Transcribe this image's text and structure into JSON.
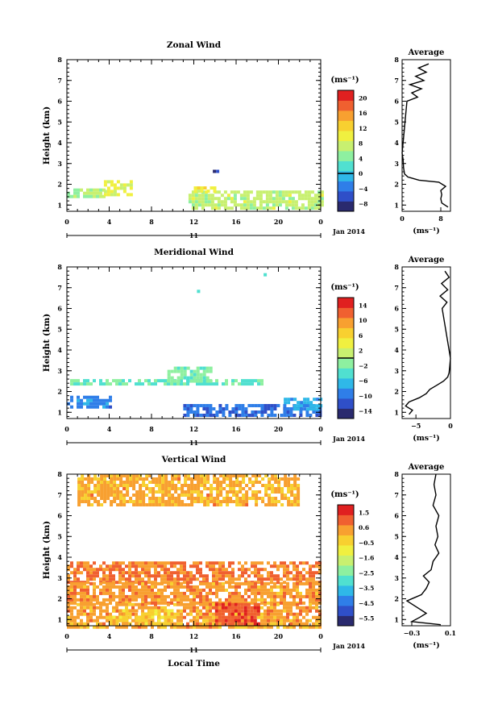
{
  "chart_data": [
    {
      "type": "heatmap",
      "title": "Zonal Wind",
      "ylabel": "Height (km)",
      "x_ticks": [
        "0",
        "4",
        "8",
        "12",
        "16",
        "20",
        "0"
      ],
      "y_ticks": [
        "1",
        "2",
        "3",
        "4",
        "5",
        "6",
        "7",
        "8"
      ],
      "date_day": "11",
      "date_label": "Jan 2014",
      "colorbar": {
        "unit": "(ms⁻¹)",
        "ticks": [
          "20",
          "16",
          "12",
          "8",
          "4",
          "0",
          "−4",
          "−8"
        ],
        "range": [
          -10,
          22
        ],
        "colors": [
          "#2a2a6e",
          "#2f4fc8",
          "#2f7ee8",
          "#2fb8e8",
          "#50e0d0",
          "#8ef0a0",
          "#c8f070",
          "#f0f040",
          "#f8d030",
          "#f8a030",
          "#f06030",
          "#e02020"
        ],
        "marker": 0
      },
      "time_range": [
        0,
        24
      ],
      "height_range": [
        0.7,
        8
      ],
      "patches": [
        {
          "t": [
            0,
            3.5
          ],
          "h": [
            1.4,
            1.8
          ],
          "v": 6
        },
        {
          "t": [
            3.5,
            6.2
          ],
          "h": [
            1.5,
            2.2
          ],
          "v": 9
        },
        {
          "t": [
            11.5,
            24
          ],
          "h": [
            0.9,
            1.7
          ],
          "v": 7
        },
        {
          "t": [
            12,
            14
          ],
          "h": [
            1.6,
            1.9
          ],
          "v": 10
        },
        {
          "t": [
            13.8,
            14.2
          ],
          "h": [
            2.4,
            2.7
          ],
          "v": -7
        }
      ],
      "profile": {
        "title": "Average",
        "xlabel": "(ms⁻¹)",
        "x_ticks": [
          "0",
          "8"
        ],
        "xlim": [
          0,
          10
        ],
        "heights": [
          0.9,
          1.1,
          1.3,
          1.5,
          1.7,
          1.9,
          2.1,
          2.2,
          2.35,
          2.5,
          2.8,
          3.2,
          3.5,
          6.0,
          6.2,
          6.4,
          6.6,
          6.8,
          7.0,
          7.2,
          7.4,
          7.6,
          7.8
        ],
        "values": [
          9.5,
          8.2,
          8.0,
          8.2,
          8.0,
          9.0,
          7.6,
          3.5,
          1.2,
          0.5,
          0.3,
          0.2,
          0.0,
          1.0,
          3.2,
          2.0,
          4.0,
          1.6,
          4.5,
          2.8,
          5.0,
          3.4,
          5.5
        ]
      }
    },
    {
      "type": "heatmap",
      "title": "Meridional Wind",
      "ylabel": "Height (km)",
      "x_ticks": [
        "0",
        "4",
        "8",
        "12",
        "16",
        "20",
        "0"
      ],
      "y_ticks": [
        "1",
        "2",
        "3",
        "4",
        "5",
        "6",
        "7",
        "8"
      ],
      "date_day": "11",
      "date_label": "Jan 2014",
      "colorbar": {
        "unit": "(ms⁻¹)",
        "ticks": [
          "14",
          "10",
          "6",
          "2",
          "−2",
          "−6",
          "−10",
          "−14"
        ],
        "range": [
          -16,
          16
        ],
        "colors": [
          "#2a2a6e",
          "#2f4fc8",
          "#2f7ee8",
          "#2fb8e8",
          "#50e0d0",
          "#8ef0a0",
          "#c8f070",
          "#f0f040",
          "#f8d030",
          "#f8a030",
          "#f06030",
          "#e02020"
        ],
        "marker": 0
      },
      "time_range": [
        0,
        24
      ],
      "height_range": [
        0.7,
        8
      ],
      "patches": [
        {
          "t": [
            0,
            4
          ],
          "h": [
            1.3,
            1.8
          ],
          "v": -9
        },
        {
          "t": [
            11,
            24
          ],
          "h": [
            0.9,
            1.4
          ],
          "v": -10
        },
        {
          "t": [
            20.5,
            24
          ],
          "h": [
            1.2,
            1.7
          ],
          "v": -7
        },
        {
          "t": [
            0,
            18.5
          ],
          "h": [
            2.4,
            2.6
          ],
          "v": -3
        },
        {
          "t": [
            9.5,
            13.5
          ],
          "h": [
            2.5,
            3.2
          ],
          "v": -2
        },
        {
          "t": [
            12.3,
            12.5
          ],
          "h": [
            6.8,
            6.9
          ],
          "v": -3
        },
        {
          "t": [
            18.6,
            18.8
          ],
          "h": [
            7.6,
            7.7
          ],
          "v": -4
        }
      ],
      "profile": {
        "title": "Average",
        "xlabel": "(ms⁻¹)",
        "x_ticks": [
          "−5",
          "0"
        ],
        "xlim": [
          -7,
          0
        ],
        "heights": [
          0.9,
          1.1,
          1.3,
          1.5,
          1.7,
          1.9,
          2.1,
          2.3,
          2.5,
          2.7,
          2.9,
          3.2,
          3.6,
          6.0,
          6.3,
          6.6,
          6.9,
          7.2,
          7.5,
          7.8
        ],
        "values": [
          -6.0,
          -5.5,
          -6.5,
          -6.0,
          -4.5,
          -3.5,
          -3.0,
          -2.0,
          -1.0,
          -0.4,
          -0.2,
          -0.1,
          0.0,
          -1.2,
          -0.5,
          -1.5,
          -0.4,
          -1.3,
          -0.2,
          -0.8
        ]
      }
    },
    {
      "type": "heatmap",
      "title": "Vertical Wind",
      "ylabel": "Height (km)",
      "xlabel": "Local Time",
      "x_ticks": [
        "0",
        "4",
        "8",
        "12",
        "16",
        "20",
        "0"
      ],
      "y_ticks": [
        "1",
        "2",
        "3",
        "4",
        "5",
        "6",
        "7",
        "8"
      ],
      "date_day": "11",
      "date_label": "Jan 2014",
      "colorbar": {
        "unit": "(ms⁻¹)",
        "ticks": [
          "1.5",
          "0.6",
          "−0.5",
          "−1.6",
          "−2.5",
          "−3.5",
          "−4.5",
          "−5.5"
        ],
        "range": [
          -6,
          2
        ],
        "colors": [
          "#2a2a6e",
          "#2f4fc8",
          "#2f7ee8",
          "#2fb8e8",
          "#50e0d0",
          "#8ef0a0",
          "#c8f070",
          "#f0f040",
          "#f8d030",
          "#f8a030",
          "#f06030",
          "#e02020"
        ]
      },
      "time_range": [
        0,
        24
      ],
      "height_range": [
        0.7,
        8
      ],
      "patches": [
        {
          "t": [
            1,
            22
          ],
          "h": [
            6.5,
            8.0
          ],
          "v": 0.2
        },
        {
          "t": [
            0,
            24
          ],
          "h": [
            2.8,
            3.8
          ],
          "v": 0.7
        },
        {
          "t": [
            0,
            24
          ],
          "h": [
            1.8,
            2.8
          ],
          "v": 0.4
        },
        {
          "t": [
            0,
            24
          ],
          "h": [
            0.7,
            1.8
          ],
          "v": 0.3
        },
        {
          "t": [
            14,
            18
          ],
          "h": [
            0.8,
            1.8
          ],
          "v": 1.2
        },
        {
          "t": [
            4,
            10
          ],
          "h": [
            0.8,
            1.5
          ],
          "v": -0.3
        }
      ],
      "profile": {
        "title": "Average",
        "xlabel": "(ms⁻¹)",
        "x_ticks": [
          "−0.3",
          "0.1"
        ],
        "xlim": [
          -0.4,
          0.1
        ],
        "heights": [
          0.75,
          0.9,
          1.1,
          1.3,
          1.6,
          1.9,
          2.2,
          2.5,
          2.8,
          3.1,
          3.4,
          3.8,
          4.2,
          4.6,
          5.0,
          5.5,
          6.0,
          6.5,
          7.0,
          7.5,
          8.0
        ],
        "values": [
          0.0,
          -0.3,
          -0.22,
          -0.15,
          -0.25,
          -0.35,
          -0.2,
          -0.15,
          -0.12,
          -0.18,
          -0.1,
          -0.08,
          -0.02,
          -0.06,
          -0.03,
          -0.05,
          -0.02,
          -0.08,
          -0.05,
          -0.07,
          -0.05
        ]
      }
    }
  ]
}
